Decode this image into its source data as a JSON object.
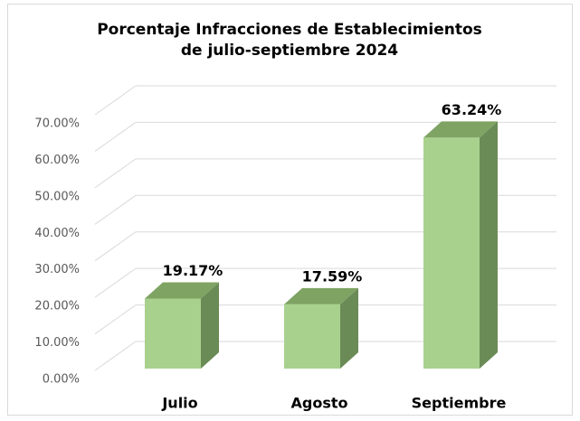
{
  "chart_data": {
    "type": "bar3d",
    "title": "Porcentaje Infracciones de Establecimientos de julio-septiembre 2024",
    "categories": [
      "Julio",
      "Agosto",
      "Septiembre"
    ],
    "values": [
      19.17,
      17.59,
      63.24
    ],
    "value_labels": [
      "19.17%",
      "17.59%",
      "63.24%"
    ],
    "color": "#a9d18e",
    "ylim": [
      0,
      70
    ],
    "yticks": [
      {
        "value": 0,
        "label": "0.00%"
      },
      {
        "value": 10,
        "label": "10.00%"
      },
      {
        "value": 20,
        "label": "20.00%"
      },
      {
        "value": 30,
        "label": "30.00%"
      },
      {
        "value": 40,
        "label": "40.00%"
      },
      {
        "value": 50,
        "label": "50.00%"
      },
      {
        "value": 60,
        "label": "60.00%"
      },
      {
        "value": 70,
        "label": "70.00%"
      }
    ],
    "grid": true
  }
}
